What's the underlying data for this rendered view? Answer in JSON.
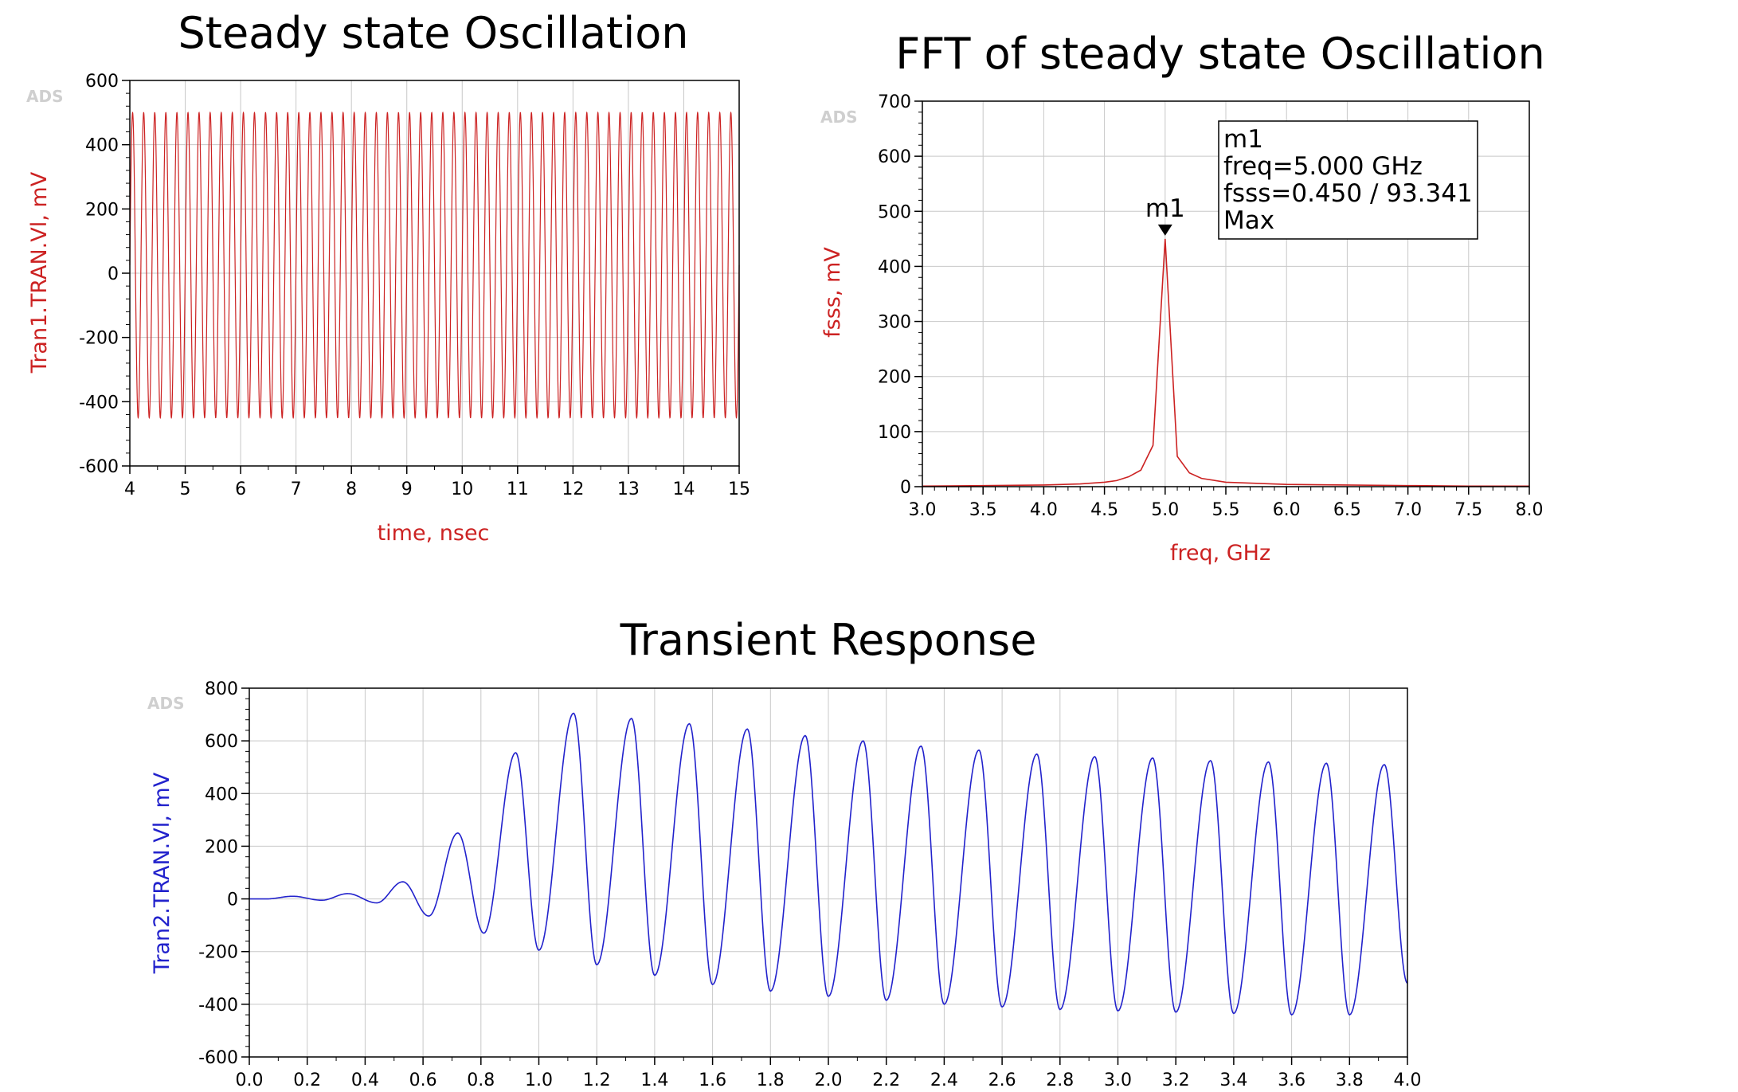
{
  "chart_data": [
    {
      "id": "steady",
      "type": "line",
      "title": "Steady state Oscillation",
      "xlabel": "time, nsec",
      "ylabel": "Tran1.TRAN.Vl, mV",
      "watermark": "ADS",
      "xlim": [
        4,
        15
      ],
      "ylim": [
        -600,
        600
      ],
      "xticks": [
        4,
        5,
        6,
        7,
        8,
        9,
        10,
        11,
        12,
        13,
        14,
        15
      ],
      "yticks": [
        -600,
        -400,
        -200,
        0,
        200,
        400,
        600
      ],
      "grid": true,
      "series": [
        {
          "color": "#cc2222",
          "frequency_ghz": 5.0,
          "max_mv": 500,
          "min_mv": -450
        }
      ]
    },
    {
      "id": "fft",
      "type": "line",
      "title": "FFT of steady state Oscillation",
      "xlabel": "freq, GHz",
      "ylabel": "fsss, mV",
      "watermark": "ADS",
      "xlim": [
        3.0,
        8.0
      ],
      "ylim": [
        0,
        700
      ],
      "xticks": [
        "3.0",
        "3.5",
        "4.0",
        "4.5",
        "5.0",
        "5.5",
        "6.0",
        "6.5",
        "7.0",
        "7.5",
        "8.0"
      ],
      "yticks": [
        0,
        100,
        200,
        300,
        400,
        500,
        600,
        700
      ],
      "grid": true,
      "series": [
        {
          "color": "#cc2222",
          "x": [
            3.0,
            3.5,
            4.0,
            4.3,
            4.5,
            4.6,
            4.7,
            4.8,
            4.9,
            5.0,
            5.1,
            5.2,
            5.3,
            5.5,
            6.0,
            6.5,
            7.0,
            7.5,
            8.0
          ],
          "y": [
            1,
            2,
            3,
            5,
            8,
            11,
            18,
            30,
            75,
            450,
            55,
            25,
            15,
            8,
            4,
            3,
            2,
            1,
            1
          ]
        }
      ],
      "marker": {
        "name": "m1",
        "x": 5.0,
        "y": 450,
        "lines": [
          "m1",
          "freq=5.000 GHz",
          "fsss=0.450 / 93.341",
          "Max"
        ]
      }
    },
    {
      "id": "transient",
      "type": "line",
      "title": "Transient Response",
      "xlabel": "",
      "ylabel": "Tran2.TRAN.Vl, mV",
      "watermark": "ADS",
      "xlim": [
        0.0,
        4.0
      ],
      "ylim": [
        -600,
        800
      ],
      "xticks": [
        "0.0",
        "0.2",
        "0.4",
        "0.6",
        "0.8",
        "1.0",
        "1.2",
        "1.4",
        "1.6",
        "1.8",
        "2.0",
        "2.2",
        "2.4",
        "2.6",
        "2.8",
        "3.0",
        "3.2",
        "3.4",
        "3.6",
        "3.8",
        "4.0"
      ],
      "yticks": [
        -600,
        -400,
        -200,
        0,
        200,
        400,
        600,
        800
      ],
      "grid": true,
      "series": [
        {
          "color": "#2222cc",
          "peaks_x": [
            0.15,
            0.34,
            0.53,
            0.72,
            0.92,
            1.12,
            1.32,
            1.52,
            1.72,
            1.92,
            2.12,
            2.32,
            2.52,
            2.72,
            2.92,
            3.12,
            3.32,
            3.52,
            3.72,
            3.92
          ],
          "peaks_y": [
            10,
            20,
            65,
            250,
            555,
            705,
            685,
            665,
            645,
            620,
            600,
            580,
            565,
            550,
            540,
            535,
            525,
            520,
            515,
            510
          ],
          "troughs_x": [
            0.25,
            0.44,
            0.62,
            0.81,
            1.0,
            1.2,
            1.4,
            1.6,
            1.8,
            2.0,
            2.2,
            2.4,
            2.6,
            2.8,
            3.0,
            3.2,
            3.4,
            3.6,
            3.8
          ],
          "troughs_y": [
            -5,
            -15,
            -65,
            -130,
            -195,
            -250,
            -290,
            -325,
            -350,
            -370,
            -385,
            -400,
            -410,
            -420,
            -425,
            -430,
            -435,
            -440,
            -440
          ],
          "end": [
            4.0,
            -320
          ]
        }
      ]
    }
  ]
}
